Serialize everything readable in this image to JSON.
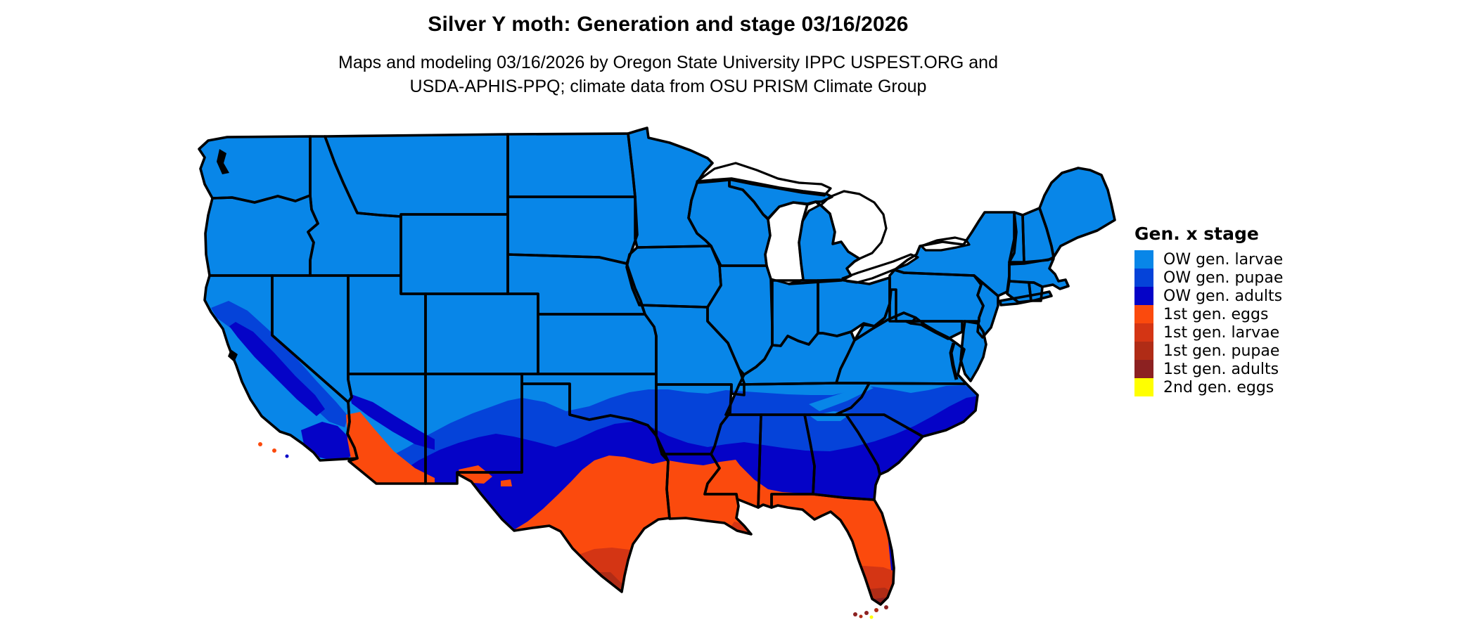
{
  "header": {
    "title": "Silver Y moth: Generation and stage 03/16/2026",
    "subtitle_line1": "Maps and modeling 03/16/2026 by Oregon State University IPPC USPEST.ORG and",
    "subtitle_line2": "USDA-APHIS-PPQ; climate data from OSU PRISM Climate Group"
  },
  "legend": {
    "title": "Gen. x stage",
    "items": [
      {
        "key": "ow-larvae",
        "label": "OW gen. larvae",
        "color": "#0886e8"
      },
      {
        "key": "ow-pupae",
        "label": "OW gen. pupae",
        "color": "#0543d9"
      },
      {
        "key": "ow-adults",
        "label": "OW gen. adults",
        "color": "#0503c7"
      },
      {
        "key": "gen1-eggs",
        "label": "1st gen. eggs",
        "color": "#fb4a0d"
      },
      {
        "key": "gen1-larvae",
        "label": "1st gen. larvae",
        "color": "#d43514"
      },
      {
        "key": "gen1-pupae",
        "label": "1st gen. pupae",
        "color": "#b02c16"
      },
      {
        "key": "gen1-adults",
        "label": "1st gen. adults",
        "color": "#8c2121"
      },
      {
        "key": "gen2-eggs",
        "label": "2nd gen. eggs",
        "color": "#ffff00"
      }
    ]
  },
  "map": {
    "region": "Continental United States",
    "background_color": "#ffffff",
    "state_border_color": "#000000",
    "water_color": "#ffffff"
  }
}
